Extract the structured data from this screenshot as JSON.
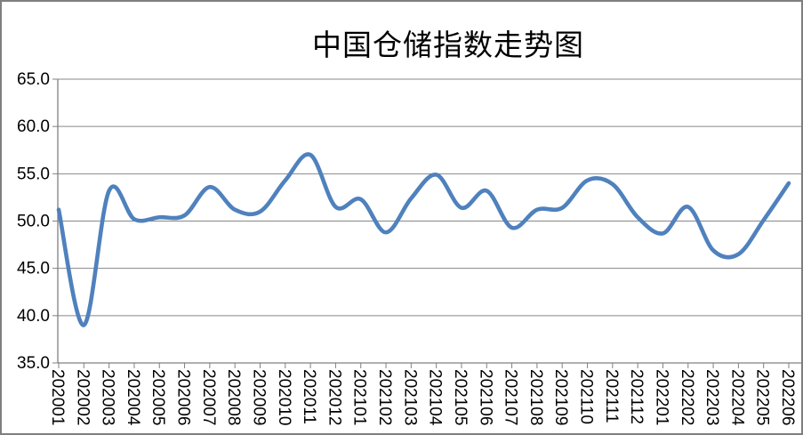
{
  "chart_data": {
    "type": "line",
    "title": "中国仓储指数走势图",
    "categories": [
      "202001",
      "202002",
      "202003",
      "202004",
      "202005",
      "202006",
      "202007",
      "202008",
      "202009",
      "202010",
      "202011",
      "202012",
      "202101",
      "202102",
      "202103",
      "202104",
      "202105",
      "202106",
      "202107",
      "202108",
      "202109",
      "202110",
      "202111",
      "202112",
      "202201",
      "202202",
      "202203",
      "202204",
      "202205",
      "202206"
    ],
    "values": [
      51.2,
      39.0,
      53.2,
      50.2,
      50.4,
      50.6,
      53.6,
      51.2,
      51.0,
      54.3,
      57.0,
      51.5,
      52.3,
      48.8,
      52.4,
      54.9,
      51.4,
      53.2,
      49.3,
      51.2,
      51.4,
      54.3,
      53.9,
      50.4,
      48.7,
      51.5,
      46.9,
      46.5,
      50.1,
      54.0
    ],
    "ylim": [
      35.0,
      65.0
    ],
    "ytick_labels": [
      "65.0",
      "60.0",
      "55.0",
      "50.0",
      "45.0",
      "40.0",
      "35.0"
    ],
    "grid": "horizontal",
    "legend": "none",
    "smooth": true,
    "xlabel": "",
    "ylabel": "",
    "colors": {
      "line": "#4F81BD",
      "gridline": "#878787",
      "axis": "#808080",
      "text": "#000000",
      "border": "#7F7F7F",
      "background": "#FFFFFF"
    }
  }
}
